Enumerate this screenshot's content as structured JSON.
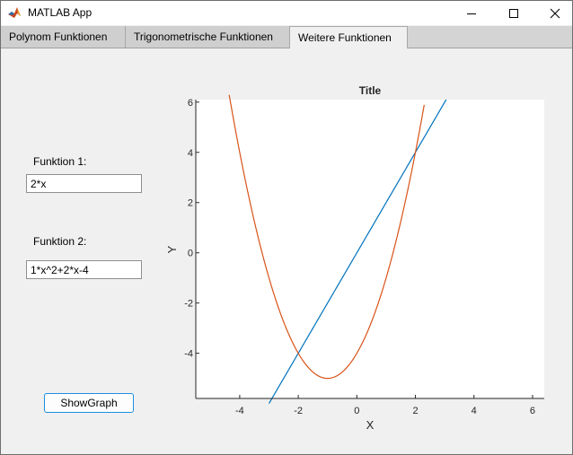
{
  "window": {
    "title": "MATLAB App",
    "controls": [
      "minimize-icon",
      "maximize-icon",
      "close-icon"
    ]
  },
  "tabs": [
    {
      "label": "Polynom Funktionen",
      "active": false
    },
    {
      "label": "Trigonometrische Funktionen",
      "active": false
    },
    {
      "label": "Weitere Funktionen",
      "active": true
    }
  ],
  "inputs": {
    "funktion1": {
      "label": "Funktion 1:",
      "value": "2*x"
    },
    "funktion2": {
      "label": "Funktion 2:",
      "value": "1*x^2+2*x-4"
    }
  },
  "show_button_label": "ShowGraph",
  "chart_data": {
    "type": "line",
    "title": "Title",
    "xlabel": "X",
    "ylabel": "Y",
    "xlim": [
      -5.5,
      6.4
    ],
    "ylim": [
      -5.8,
      6.1
    ],
    "xticks": [
      -4,
      -2,
      0,
      2,
      4,
      6
    ],
    "yticks": [
      -4,
      -2,
      0,
      2,
      4,
      6
    ],
    "grid": false,
    "legend": "none",
    "series": [
      {
        "expression": "2*x",
        "color": "#0072bd",
        "x_range": [
          -3.0,
          3.05
        ]
      },
      {
        "expression": "1*x^2+2*x-4",
        "color": "#d95319",
        "x_range": [
          -4.36,
          2.3
        ]
      }
    ]
  }
}
